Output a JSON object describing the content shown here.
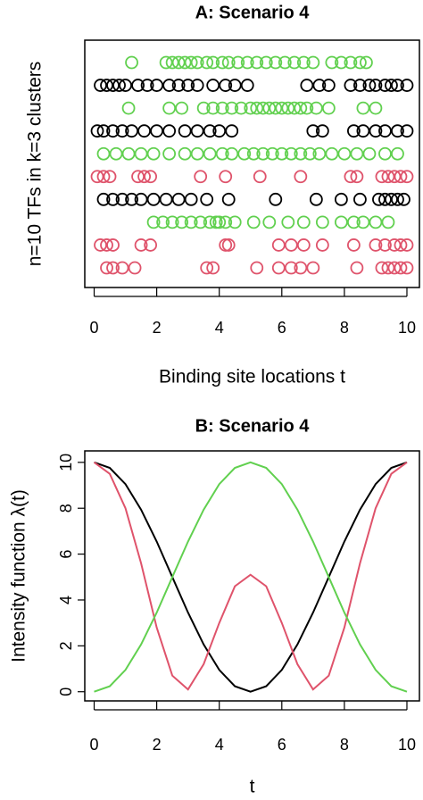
{
  "chart_data": [
    {
      "type": "scatter",
      "title": "A: Scenario 4",
      "xlabel": "Binding site locations t",
      "ylabel": "n=10 TFs in k=3 clusters",
      "xlim": [
        -0.3,
        10.4
      ],
      "xticks": [
        0,
        2,
        4,
        6,
        8,
        10
      ],
      "series": [
        {
          "color": "#61d04f",
          "x": [
            1.2,
            2.3,
            2.5,
            2.7,
            2.9,
            3.1,
            3.3,
            3.6,
            3.8,
            4.1,
            4.3,
            4.6,
            4.9,
            5.2,
            5.5,
            5.8,
            6.1,
            6.4,
            6.7,
            7.0,
            7.6,
            7.9,
            8.2,
            8.5,
            8.7
          ]
        },
        {
          "color": "#000000",
          "x": [
            0.2,
            0.4,
            0.6,
            0.8,
            1.0,
            1.4,
            1.7,
            2.0,
            2.4,
            2.7,
            3.0,
            3.3,
            3.8,
            4.2,
            4.5,
            4.9,
            6.8,
            7.2,
            7.5,
            8.2,
            8.5,
            8.8,
            9.0,
            9.3,
            9.5,
            9.7,
            10.0
          ]
        },
        {
          "color": "#61d04f",
          "x": [
            1.1,
            2.4,
            2.8,
            3.5,
            3.8,
            4.1,
            4.4,
            4.7,
            5.0,
            5.2,
            5.4,
            5.6,
            5.8,
            6.0,
            6.2,
            6.4,
            6.6,
            6.8,
            7.1,
            7.5,
            8.6,
            9.0
          ]
        },
        {
          "color": "#000000",
          "x": [
            0.1,
            0.3,
            0.6,
            0.9,
            1.2,
            1.6,
            2.0,
            2.4,
            2.9,
            3.3,
            3.7,
            4.0,
            4.4,
            7.0,
            7.3,
            8.3,
            8.6,
            9.0,
            9.3,
            9.7,
            10.0
          ]
        },
        {
          "color": "#61d04f",
          "x": [
            0.3,
            0.7,
            1.1,
            1.5,
            1.9,
            2.4,
            2.9,
            3.3,
            3.7,
            4.1,
            4.4,
            4.8,
            5.1,
            5.4,
            5.7,
            6.0,
            6.3,
            6.6,
            6.9,
            7.2,
            7.6,
            8.0,
            8.4,
            8.8,
            9.3,
            9.7
          ]
        },
        {
          "color": "#df536b",
          "x": [
            0.1,
            0.3,
            0.5,
            1.4,
            1.6,
            1.8,
            3.4,
            4.2,
            5.3,
            6.6,
            8.2,
            8.4,
            9.2,
            9.4,
            9.6,
            9.8,
            10.0
          ]
        },
        {
          "color": "#000000",
          "x": [
            0.3,
            0.6,
            0.9,
            1.2,
            1.5,
            1.9,
            2.3,
            2.7,
            3.1,
            3.6,
            4.3,
            5.8,
            7.1,
            7.9,
            8.5,
            9.1,
            9.3,
            9.5,
            9.7,
            9.9
          ]
        },
        {
          "color": "#61d04f",
          "x": [
            1.9,
            2.2,
            2.5,
            2.8,
            3.1,
            3.4,
            3.7,
            3.9,
            4.0,
            4.2,
            4.5,
            5.1,
            5.6,
            6.2,
            6.7,
            7.3,
            7.9,
            8.3,
            8.6,
            9.0,
            9.4
          ]
        },
        {
          "color": "#df536b",
          "x": [
            0.2,
            0.4,
            0.6,
            1.5,
            1.8,
            4.2,
            4.3,
            5.9,
            6.3,
            6.7,
            7.3,
            8.3,
            9.0,
            9.3,
            9.6,
            9.8,
            10.0
          ]
        },
        {
          "color": "#df536b",
          "x": [
            0.4,
            0.6,
            0.9,
            1.3,
            3.6,
            3.8,
            5.2,
            5.9,
            6.3,
            6.6,
            7.0,
            8.4,
            9.2,
            9.4,
            9.6,
            9.8,
            10.0
          ]
        }
      ]
    },
    {
      "type": "line",
      "title": "B: Scenario 4",
      "xlabel": "t",
      "ylabel": "Intensity function λ(t)",
      "xlim": [
        -0.3,
        10.4
      ],
      "xticks": [
        0,
        2,
        4,
        6,
        8,
        10
      ],
      "ylim": [
        -0.4,
        10.5
      ],
      "yticks": [
        0,
        2,
        4,
        6,
        8,
        10
      ],
      "x": [
        0,
        0.5,
        1,
        1.5,
        2,
        2.5,
        3,
        3.5,
        4,
        4.5,
        5,
        5.5,
        6,
        6.5,
        7,
        7.5,
        8,
        8.5,
        9,
        9.5,
        10
      ],
      "series": [
        {
          "color": "#000000",
          "values": [
            10,
            9.76,
            9.05,
            7.94,
            6.55,
            5,
            3.45,
            2.06,
            0.95,
            0.24,
            0,
            0.24,
            0.95,
            2.06,
            3.45,
            5,
            6.55,
            7.94,
            9.05,
            9.76,
            10
          ]
        },
        {
          "color": "#df536b",
          "values": [
            10,
            9.5,
            8.0,
            5.6,
            2.8,
            0.7,
            0.1,
            1.2,
            3.0,
            4.6,
            5.1,
            4.6,
            3.0,
            1.2,
            0.1,
            0.7,
            2.8,
            5.6,
            8.0,
            9.5,
            10
          ]
        },
        {
          "color": "#61d04f",
          "values": [
            0,
            0.24,
            0.95,
            2.06,
            3.45,
            5,
            6.55,
            7.94,
            9.05,
            9.76,
            10,
            9.76,
            9.05,
            7.94,
            6.55,
            5,
            3.45,
            2.06,
            0.95,
            0.24,
            0
          ]
        }
      ]
    }
  ]
}
